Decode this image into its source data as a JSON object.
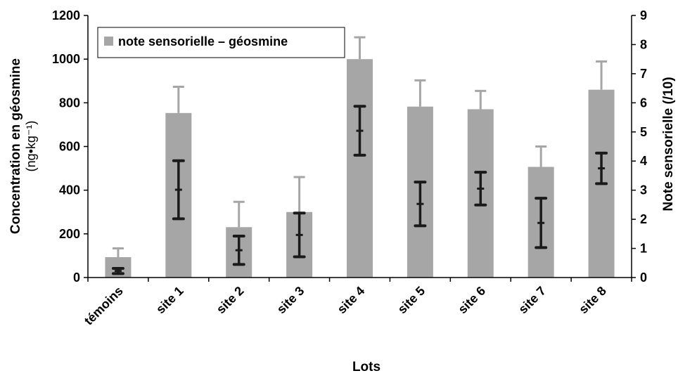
{
  "chart_data": {
    "type": "bar",
    "xlabel": "Lots",
    "ylabel_left": "Concentration en géosmine",
    "ylabel_left_unit": "(ng•kg⁻¹)",
    "ylabel_right": "Note sensorielle (/10)",
    "categories": [
      "témoins",
      "site 1",
      "site 2",
      "site 3",
      "site 4",
      "site 5",
      "site 6",
      "site 7",
      "site 8"
    ],
    "ylim_left": [
      0,
      1200
    ],
    "yticks_left": [
      0,
      200,
      400,
      600,
      800,
      1000,
      1200
    ],
    "ylim_right": [
      0,
      9
    ],
    "yticks_right": [
      0,
      1,
      2,
      3,
      4,
      5,
      6,
      7,
      8,
      9
    ],
    "legend": {
      "placement": "top-left",
      "label": "note sensorielle  – géosmine"
    },
    "series": [
      {
        "name": "note sensorielle",
        "axis": "right",
        "style": "bar",
        "color": "#a6a6a6",
        "values": [
          0.7,
          5.65,
          1.73,
          2.25,
          7.5,
          5.87,
          5.78,
          3.8,
          6.45
        ],
        "error_upper": [
          0.3,
          0.9,
          0.87,
          1.2,
          0.75,
          0.9,
          0.63,
          0.7,
          0.97
        ]
      },
      {
        "name": "géosmine",
        "axis": "left",
        "style": "errorbar",
        "color": "#1a1a1a",
        "values": [
          30,
          402,
          125,
          195,
          672,
          337,
          407,
          250,
          500
        ],
        "error": [
          12,
          133,
          65,
          100,
          112,
          100,
          75,
          113,
          70
        ]
      }
    ]
  }
}
